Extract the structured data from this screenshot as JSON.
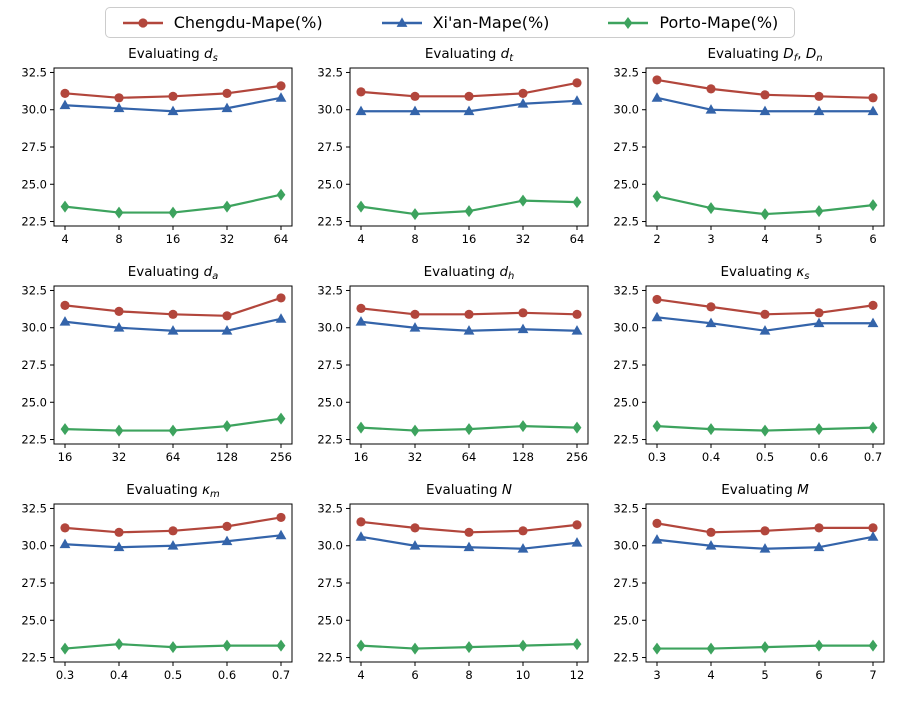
{
  "figure": {
    "legend": {
      "entries": [
        {
          "label": "Chengdu-Mape(%)",
          "color": "#b2463c",
          "marker": "circle"
        },
        {
          "label": "Xi'an-Mape(%)",
          "color": "#3464aa",
          "marker": "triangle"
        },
        {
          "label": "Porto-Mape(%)",
          "color": "#3da35e",
          "marker": "diamond"
        }
      ]
    },
    "series_styles": {
      "colors": [
        "#b2463c",
        "#3464aa",
        "#3da35e"
      ],
      "markers": [
        "circle",
        "triangle",
        "diamond"
      ]
    }
  },
  "chart_data": [
    {
      "type": "line",
      "title_text": "Evaluating d_s",
      "title_parts": [
        {
          "t": "Evaluating ",
          "it": false
        },
        {
          "t": "d",
          "it": true
        },
        {
          "t": "s",
          "it": true,
          "sub": true
        }
      ],
      "categories": [
        "4",
        "8",
        "16",
        "32",
        "64"
      ],
      "yticks": [
        22.5,
        25.0,
        27.5,
        30.0,
        32.5
      ],
      "ylim": [
        22.2,
        32.8
      ],
      "series": [
        {
          "name": "Chengdu-Mape(%)",
          "values": [
            31.1,
            30.8,
            30.9,
            31.1,
            31.6
          ]
        },
        {
          "name": "Xi'an-Mape(%)",
          "values": [
            30.3,
            30.1,
            29.9,
            30.1,
            30.8
          ]
        },
        {
          "name": "Porto-Mape(%)",
          "values": [
            23.5,
            23.1,
            23.1,
            23.5,
            24.3
          ]
        }
      ]
    },
    {
      "type": "line",
      "title_text": "Evaluating d_t",
      "title_parts": [
        {
          "t": "Evaluating ",
          "it": false
        },
        {
          "t": "d",
          "it": true
        },
        {
          "t": "t",
          "it": true,
          "sub": true
        }
      ],
      "categories": [
        "4",
        "8",
        "16",
        "32",
        "64"
      ],
      "yticks": [
        22.5,
        25.0,
        27.5,
        30.0,
        32.5
      ],
      "ylim": [
        22.2,
        32.8
      ],
      "series": [
        {
          "name": "Chengdu-Mape(%)",
          "values": [
            31.2,
            30.9,
            30.9,
            31.1,
            31.8
          ]
        },
        {
          "name": "Xi'an-Mape(%)",
          "values": [
            29.9,
            29.9,
            29.9,
            30.4,
            30.6
          ]
        },
        {
          "name": "Porto-Mape(%)",
          "values": [
            23.5,
            23.0,
            23.2,
            23.9,
            23.8
          ]
        }
      ]
    },
    {
      "type": "line",
      "title_text": "Evaluating D_f, D_n",
      "title_parts": [
        {
          "t": "Evaluating ",
          "it": false
        },
        {
          "t": "D",
          "it": true
        },
        {
          "t": "f",
          "it": true,
          "sub": true
        },
        {
          "t": ", ",
          "it": false
        },
        {
          "t": "D",
          "it": true
        },
        {
          "t": "n",
          "it": true,
          "sub": true
        }
      ],
      "categories": [
        "2",
        "3",
        "4",
        "5",
        "6"
      ],
      "yticks": [
        22.5,
        25.0,
        27.5,
        30.0,
        32.5
      ],
      "ylim": [
        22.2,
        32.8
      ],
      "series": [
        {
          "name": "Chengdu-Mape(%)",
          "values": [
            32.0,
            31.4,
            31.0,
            30.9,
            30.8
          ]
        },
        {
          "name": "Xi'an-Mape(%)",
          "values": [
            30.8,
            30.0,
            29.9,
            29.9,
            29.9
          ]
        },
        {
          "name": "Porto-Mape(%)",
          "values": [
            24.2,
            23.4,
            23.0,
            23.2,
            23.6
          ]
        }
      ]
    },
    {
      "type": "line",
      "title_text": "Evaluating d_a",
      "title_parts": [
        {
          "t": "Evaluating ",
          "it": false
        },
        {
          "t": "d",
          "it": true
        },
        {
          "t": "a",
          "it": true,
          "sub": true
        }
      ],
      "categories": [
        "16",
        "32",
        "64",
        "128",
        "256"
      ],
      "yticks": [
        22.5,
        25.0,
        27.5,
        30.0,
        32.5
      ],
      "ylim": [
        22.2,
        32.8
      ],
      "series": [
        {
          "name": "Chengdu-Mape(%)",
          "values": [
            31.5,
            31.1,
            30.9,
            30.8,
            32.0
          ]
        },
        {
          "name": "Xi'an-Mape(%)",
          "values": [
            30.4,
            30.0,
            29.8,
            29.8,
            30.6
          ]
        },
        {
          "name": "Porto-Mape(%)",
          "values": [
            23.2,
            23.1,
            23.1,
            23.4,
            23.9
          ]
        }
      ]
    },
    {
      "type": "line",
      "title_text": "Evaluating d_h",
      "title_parts": [
        {
          "t": "Evaluating ",
          "it": false
        },
        {
          "t": "d",
          "it": true
        },
        {
          "t": "h",
          "it": true,
          "sub": true
        }
      ],
      "categories": [
        "16",
        "32",
        "64",
        "128",
        "256"
      ],
      "yticks": [
        22.5,
        25.0,
        27.5,
        30.0,
        32.5
      ],
      "ylim": [
        22.2,
        32.8
      ],
      "series": [
        {
          "name": "Chengdu-Mape(%)",
          "values": [
            31.3,
            30.9,
            30.9,
            31.0,
            30.9
          ]
        },
        {
          "name": "Xi'an-Mape(%)",
          "values": [
            30.4,
            30.0,
            29.8,
            29.9,
            29.8
          ]
        },
        {
          "name": "Porto-Mape(%)",
          "values": [
            23.3,
            23.1,
            23.2,
            23.4,
            23.3
          ]
        }
      ]
    },
    {
      "type": "line",
      "title_text": "Evaluating κ_s",
      "title_parts": [
        {
          "t": "Evaluating ",
          "it": false
        },
        {
          "t": "κ",
          "it": true
        },
        {
          "t": "s",
          "it": true,
          "sub": true
        }
      ],
      "categories": [
        "0.3",
        "0.4",
        "0.5",
        "0.6",
        "0.7"
      ],
      "yticks": [
        22.5,
        25.0,
        27.5,
        30.0,
        32.5
      ],
      "ylim": [
        22.2,
        32.8
      ],
      "series": [
        {
          "name": "Chengdu-Mape(%)",
          "values": [
            31.9,
            31.4,
            30.9,
            31.0,
            31.5
          ]
        },
        {
          "name": "Xi'an-Mape(%)",
          "values": [
            30.7,
            30.3,
            29.8,
            30.3,
            30.3
          ]
        },
        {
          "name": "Porto-Mape(%)",
          "values": [
            23.4,
            23.2,
            23.1,
            23.2,
            23.3
          ]
        }
      ]
    },
    {
      "type": "line",
      "title_text": "Evaluating κ_m",
      "title_parts": [
        {
          "t": "Evaluating ",
          "it": false
        },
        {
          "t": "κ",
          "it": true
        },
        {
          "t": "m",
          "it": true,
          "sub": true
        }
      ],
      "categories": [
        "0.3",
        "0.4",
        "0.5",
        "0.6",
        "0.7"
      ],
      "yticks": [
        22.5,
        25.0,
        27.5,
        30.0,
        32.5
      ],
      "ylim": [
        22.2,
        32.8
      ],
      "series": [
        {
          "name": "Chengdu-Mape(%)",
          "values": [
            31.2,
            30.9,
            31.0,
            31.3,
            31.9
          ]
        },
        {
          "name": "Xi'an-Mape(%)",
          "values": [
            30.1,
            29.9,
            30.0,
            30.3,
            30.7
          ]
        },
        {
          "name": "Porto-Mape(%)",
          "values": [
            23.1,
            23.4,
            23.2,
            23.3,
            23.3
          ]
        }
      ]
    },
    {
      "type": "line",
      "title_text": "Evaluating N",
      "title_parts": [
        {
          "t": "Evaluating ",
          "it": false
        },
        {
          "t": "N",
          "it": true
        }
      ],
      "categories": [
        "4",
        "6",
        "8",
        "10",
        "12"
      ],
      "yticks": [
        22.5,
        25.0,
        27.5,
        30.0,
        32.5
      ],
      "ylim": [
        22.2,
        32.8
      ],
      "series": [
        {
          "name": "Chengdu-Mape(%)",
          "values": [
            31.6,
            31.2,
            30.9,
            31.0,
            31.4
          ]
        },
        {
          "name": "Xi'an-Mape(%)",
          "values": [
            30.6,
            30.0,
            29.9,
            29.8,
            30.2
          ]
        },
        {
          "name": "Porto-Mape(%)",
          "values": [
            23.3,
            23.1,
            23.2,
            23.3,
            23.4
          ]
        }
      ]
    },
    {
      "type": "line",
      "title_text": "Evaluating M",
      "title_parts": [
        {
          "t": "Evaluating ",
          "it": false
        },
        {
          "t": "M",
          "it": true
        }
      ],
      "categories": [
        "3",
        "4",
        "5",
        "6",
        "7"
      ],
      "yticks": [
        22.5,
        25.0,
        27.5,
        30.0,
        32.5
      ],
      "ylim": [
        22.2,
        32.8
      ],
      "series": [
        {
          "name": "Chengdu-Mape(%)",
          "values": [
            31.5,
            30.9,
            31.0,
            31.2,
            31.2
          ]
        },
        {
          "name": "Xi'an-Mape(%)",
          "values": [
            30.4,
            30.0,
            29.8,
            29.9,
            30.6
          ]
        },
        {
          "name": "Porto-Mape(%)",
          "values": [
            23.1,
            23.1,
            23.2,
            23.3,
            23.3
          ]
        }
      ]
    }
  ]
}
